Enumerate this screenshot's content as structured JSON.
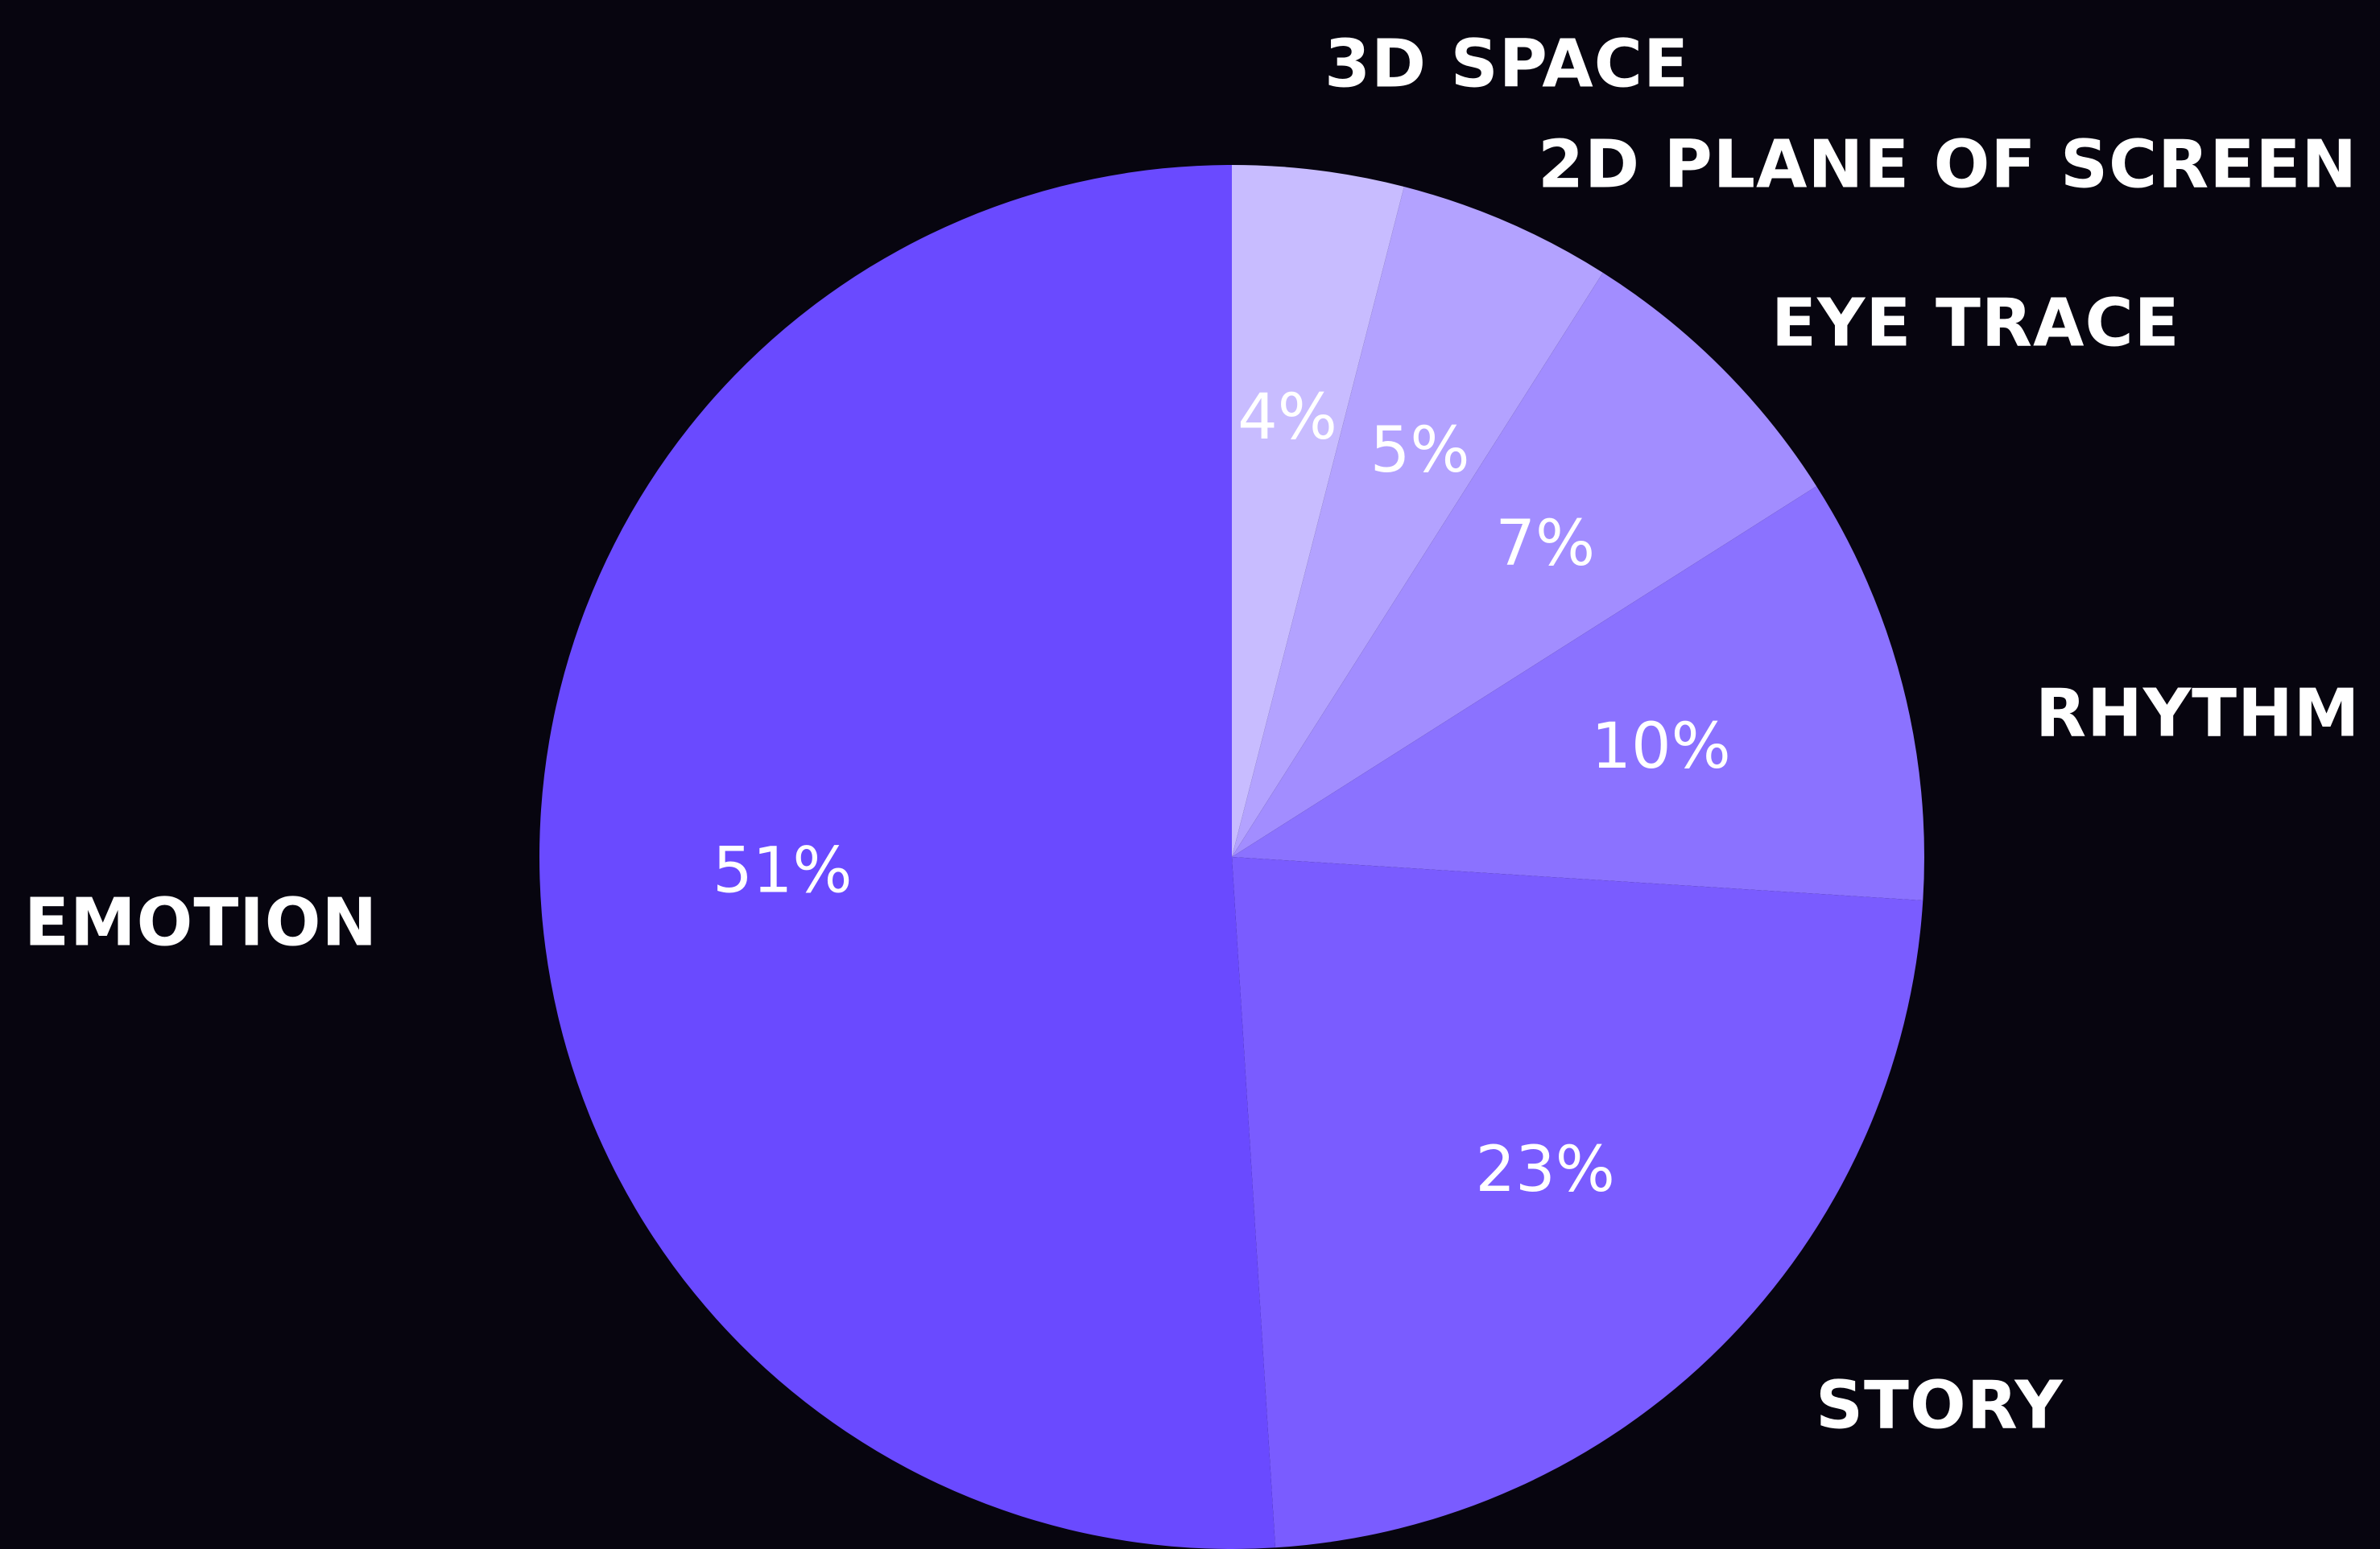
{
  "chart_data": {
    "type": "pie",
    "slices": [
      {
        "label": "3D SPACE",
        "value": 4,
        "value_label": "4%",
        "color": "#c8bcff"
      },
      {
        "label": "2D PLANE OF SCREEN",
        "value": 5,
        "value_label": "5%",
        "color": "#b3a2ff"
      },
      {
        "label": "EYE TRACE",
        "value": 7,
        "value_label": "7%",
        "color": "#a28dff"
      },
      {
        "label": "RHYTHM",
        "value": 10,
        "value_label": "10%",
        "color": "#8b72ff"
      },
      {
        "label": "STORY",
        "value": 23,
        "value_label": "23%",
        "color": "#7a5cff"
      },
      {
        "label": "EMOTION",
        "value": 51,
        "value_label": "51%",
        "color": "#6a4aff"
      }
    ],
    "start_angle": "12 o'clock",
    "direction": "clockwise",
    "legend": "none"
  },
  "colors": {
    "background": "#07050f",
    "text": "#ffffff"
  }
}
